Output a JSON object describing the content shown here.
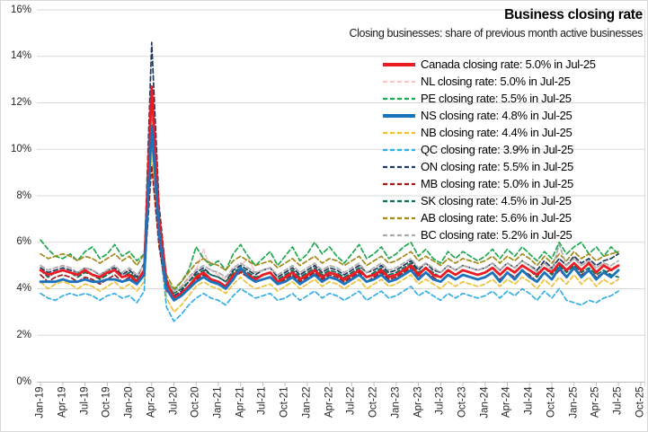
{
  "title": "Business closing rate",
  "subtitle": "Closing businesses: share of previous month active businesses",
  "y_axis": {
    "min": 0,
    "max": 16,
    "step": 2,
    "tick_labels": [
      "0%",
      "2%",
      "4%",
      "6%",
      "8%",
      "10%",
      "12%",
      "14%",
      "16%"
    ]
  },
  "x_axis": {
    "tick_labels": [
      "Jan-19",
      "Apr-19",
      "Jul-19",
      "Oct-19",
      "Jan-20",
      "Apr-20",
      "Jul-20",
      "Oct-20",
      "Jan-21",
      "Apr-21",
      "Jul-21",
      "Oct-21",
      "Jan-22",
      "Apr-22",
      "Jul-22",
      "Oct-22",
      "Jan-23",
      "Apr-23",
      "Jul-23",
      "Oct-23",
      "Jan-24",
      "Apr-24",
      "Jul-24",
      "Oct-24",
      "Jan-25",
      "Apr-25",
      "Jul-25",
      "Oct-25"
    ],
    "months_between_ticks": 3,
    "total_month_slots": 82
  },
  "chart_data": {
    "type": "line",
    "frequency": "monthly",
    "x_start": "Jan-19",
    "x_end": "Jul-25",
    "grid": "horizontal",
    "legend_position": "top-right",
    "ylim": [
      0,
      16
    ],
    "series": [
      {
        "name": "Canada",
        "legend_label": "Canada closing rate: 5.0% in Jul-25",
        "last_value": 5.0,
        "color": "#ec1c24",
        "dash": false,
        "thick": true,
        "values": [
          4.8,
          4.6,
          4.7,
          4.8,
          4.7,
          4.6,
          4.8,
          4.6,
          4.5,
          4.7,
          4.8,
          4.5,
          4.6,
          4.3,
          4.8,
          12.7,
          7.0,
          4.3,
          3.6,
          3.8,
          4.1,
          4.5,
          4.7,
          4.4,
          4.3,
          4.1,
          4.6,
          4.8,
          4.6,
          4.4,
          4.6,
          4.7,
          4.3,
          4.5,
          4.7,
          4.4,
          4.6,
          4.8,
          4.5,
          4.7,
          4.6,
          4.4,
          4.6,
          4.8,
          4.5,
          4.6,
          4.8,
          4.5,
          4.6,
          4.8,
          5.0,
          4.6,
          4.9,
          4.6,
          4.5,
          4.8,
          4.6,
          4.8,
          4.7,
          4.6,
          4.7,
          4.9,
          4.6,
          4.9,
          4.7,
          5.0,
          4.8,
          4.6,
          4.9,
          4.7,
          5.1,
          4.8,
          5.1,
          4.8,
          5.1,
          4.7,
          5.0,
          4.8,
          5.0
        ]
      },
      {
        "name": "NL",
        "legend_label": "NL closing rate: 5.0% in Jul-25",
        "last_value": 5.0,
        "color": "#f3c6c8",
        "dash": true,
        "thick": false,
        "values": [
          5.0,
          4.8,
          4.9,
          5.0,
          4.9,
          4.7,
          4.9,
          4.8,
          4.6,
          4.8,
          5.0,
          4.7,
          4.8,
          4.5,
          5.0,
          10.2,
          6.6,
          4.2,
          3.8,
          4.0,
          4.4,
          4.8,
          5.7,
          4.8,
          4.6,
          4.4,
          4.8,
          5.0,
          5.3,
          4.7,
          4.8,
          4.9,
          4.5,
          4.7,
          4.9,
          4.6,
          4.8,
          5.0,
          4.7,
          4.9,
          4.8,
          4.6,
          4.8,
          5.0,
          4.7,
          4.8,
          5.0,
          4.7,
          4.8,
          5.0,
          5.2,
          4.8,
          5.1,
          4.8,
          4.7,
          5.0,
          4.8,
          5.0,
          4.9,
          4.8,
          4.9,
          5.1,
          4.8,
          5.1,
          4.9,
          5.2,
          5.0,
          4.8,
          5.1,
          4.9,
          5.3,
          5.0,
          5.3,
          5.0,
          5.2,
          4.9,
          5.1,
          4.9,
          5.0
        ]
      },
      {
        "name": "PE",
        "legend_label": "PE closing rate: 5.5% in Jul-25",
        "last_value": 5.5,
        "color": "#1fa84f",
        "dash": true,
        "thick": false,
        "values": [
          6.1,
          5.7,
          5.4,
          5.3,
          5.5,
          5.2,
          5.6,
          5.8,
          5.3,
          5.5,
          5.9,
          5.4,
          5.6,
          5.2,
          5.5,
          10.4,
          6.8,
          4.4,
          3.9,
          4.3,
          4.8,
          5.8,
          5.3,
          5.0,
          5.2,
          4.8,
          5.5,
          5.9,
          5.4,
          5.0,
          5.3,
          5.6,
          5.0,
          5.4,
          5.8,
          5.2,
          5.5,
          6.0,
          5.5,
          5.8,
          5.4,
          5.1,
          5.5,
          5.9,
          5.3,
          5.5,
          5.8,
          5.3,
          5.5,
          5.8,
          6.0,
          5.4,
          5.7,
          5.3,
          5.1,
          5.6,
          5.3,
          5.6,
          5.4,
          5.2,
          5.4,
          5.7,
          5.3,
          5.7,
          5.4,
          5.8,
          5.5,
          5.2,
          5.6,
          5.3,
          6.0,
          5.5,
          5.8,
          6.0,
          5.5,
          5.8,
          5.4,
          5.8,
          5.5
        ]
      },
      {
        "name": "NS",
        "legend_label": "NS closing rate: 4.8% in Jul-25",
        "last_value": 4.8,
        "color": "#1b74bb",
        "dash": false,
        "thick": true,
        "values": [
          4.3,
          4.3,
          4.3,
          4.4,
          4.3,
          4.3,
          4.4,
          4.3,
          4.3,
          4.4,
          4.4,
          4.3,
          4.4,
          4.2,
          4.6,
          11.0,
          6.4,
          4.0,
          3.5,
          3.7,
          4.0,
          4.3,
          4.5,
          4.3,
          4.2,
          4.0,
          4.4,
          4.9,
          4.5,
          4.3,
          4.4,
          4.5,
          4.2,
          4.3,
          4.5,
          4.2,
          4.4,
          4.6,
          4.3,
          4.5,
          4.4,
          4.2,
          4.4,
          4.6,
          4.3,
          4.4,
          4.6,
          4.3,
          4.4,
          4.6,
          4.8,
          4.4,
          4.7,
          4.4,
          4.3,
          4.6,
          4.4,
          4.6,
          4.5,
          4.4,
          4.5,
          4.7,
          4.3,
          4.7,
          4.4,
          4.8,
          4.5,
          4.3,
          4.7,
          4.4,
          4.9,
          4.5,
          4.9,
          4.5,
          4.8,
          4.4,
          4.7,
          4.5,
          4.8
        ]
      },
      {
        "name": "NB",
        "legend_label": "NB closing rate: 4.4% in Jul-25",
        "last_value": 4.4,
        "color": "#efc13b",
        "dash": true,
        "thick": false,
        "values": [
          4.3,
          4.0,
          4.2,
          4.3,
          4.2,
          4.0,
          4.2,
          4.1,
          3.9,
          4.1,
          4.3,
          4.0,
          4.2,
          3.9,
          4.3,
          9.8,
          6.0,
          3.6,
          3.0,
          3.3,
          3.7,
          4.1,
          4.3,
          4.1,
          4.0,
          3.8,
          4.2,
          4.5,
          4.2,
          4.0,
          4.1,
          4.2,
          3.9,
          4.1,
          4.3,
          4.0,
          4.2,
          4.4,
          4.1,
          4.3,
          4.2,
          4.0,
          4.2,
          4.4,
          4.0,
          4.2,
          4.4,
          4.1,
          4.2,
          4.4,
          4.6,
          4.2,
          4.4,
          4.2,
          4.0,
          4.3,
          4.1,
          4.3,
          4.2,
          4.1,
          4.2,
          4.4,
          4.1,
          4.4,
          4.2,
          4.5,
          4.3,
          4.0,
          4.4,
          4.1,
          4.5,
          4.2,
          4.6,
          4.2,
          4.5,
          4.1,
          4.4,
          4.2,
          4.4
        ]
      },
      {
        "name": "QC",
        "legend_label": "QC closing rate: 3.9% in Jul-25",
        "last_value": 3.9,
        "color": "#35aee3",
        "dash": true,
        "thick": false,
        "values": [
          3.8,
          3.6,
          3.5,
          3.7,
          3.8,
          3.7,
          3.8,
          3.7,
          3.5,
          3.7,
          3.8,
          3.6,
          3.7,
          3.4,
          3.9,
          11.3,
          6.2,
          3.2,
          2.6,
          2.9,
          3.3,
          3.6,
          3.8,
          3.6,
          3.5,
          3.3,
          3.7,
          4.0,
          3.8,
          3.6,
          3.7,
          3.8,
          3.5,
          3.6,
          3.8,
          3.5,
          3.7,
          3.9,
          3.6,
          3.8,
          3.7,
          3.5,
          3.7,
          3.9,
          3.5,
          3.7,
          3.9,
          3.6,
          3.7,
          3.9,
          4.1,
          3.7,
          3.9,
          3.7,
          3.5,
          3.8,
          3.6,
          3.8,
          3.7,
          3.6,
          3.7,
          3.9,
          3.6,
          3.9,
          3.7,
          4.0,
          3.8,
          3.5,
          3.9,
          3.6,
          4.0,
          3.5,
          3.4,
          3.3,
          3.5,
          3.4,
          3.6,
          3.7,
          3.9
        ]
      },
      {
        "name": "ON",
        "legend_label": "ON closing rate: 5.5% in Jul-25",
        "last_value": 5.5,
        "color": "#1f3a5f",
        "dash": true,
        "thick": false,
        "values": [
          4.9,
          4.7,
          4.8,
          4.9,
          4.8,
          4.7,
          4.9,
          4.8,
          4.6,
          4.8,
          4.9,
          4.6,
          4.8,
          4.5,
          5.1,
          14.6,
          7.6,
          4.4,
          3.7,
          3.9,
          4.3,
          4.7,
          4.9,
          4.6,
          4.5,
          4.3,
          4.8,
          5.0,
          4.8,
          4.6,
          4.8,
          4.9,
          4.5,
          4.7,
          4.9,
          4.6,
          4.8,
          5.0,
          4.7,
          4.9,
          4.8,
          4.6,
          4.8,
          5.0,
          4.7,
          4.8,
          5.0,
          4.7,
          4.8,
          5.0,
          5.2,
          4.8,
          5.1,
          4.8,
          4.7,
          5.0,
          4.8,
          5.0,
          4.9,
          4.8,
          4.9,
          5.1,
          4.8,
          5.1,
          4.9,
          5.2,
          5.0,
          4.8,
          5.2,
          4.9,
          5.3,
          5.0,
          5.4,
          5.1,
          5.3,
          5.0,
          5.2,
          5.3,
          5.5
        ]
      },
      {
        "name": "MB",
        "legend_label": "MB closing rate: 5.0% in Jul-25",
        "last_value": 5.0,
        "color": "#9e1b1e",
        "dash": true,
        "thick": false,
        "values": [
          4.6,
          4.3,
          4.5,
          4.6,
          4.5,
          4.3,
          4.5,
          4.4,
          4.2,
          4.4,
          4.6,
          4.3,
          4.5,
          4.2,
          4.6,
          9.3,
          5.8,
          3.9,
          3.6,
          3.8,
          4.1,
          4.4,
          4.6,
          4.4,
          4.3,
          4.1,
          4.5,
          4.7,
          4.5,
          4.3,
          4.4,
          4.5,
          4.2,
          4.4,
          4.6,
          4.3,
          4.5,
          4.7,
          4.4,
          4.6,
          4.5,
          4.3,
          4.5,
          4.7,
          4.3,
          4.5,
          4.7,
          4.4,
          4.5,
          4.7,
          4.9,
          4.5,
          4.7,
          4.5,
          4.3,
          4.6,
          4.4,
          4.6,
          4.5,
          4.4,
          4.5,
          4.7,
          4.4,
          4.7,
          4.5,
          4.8,
          4.6,
          4.3,
          4.7,
          4.4,
          4.8,
          4.5,
          4.9,
          4.6,
          4.8,
          4.5,
          4.7,
          4.8,
          5.0
        ]
      },
      {
        "name": "SK",
        "legend_label": "SK closing rate: 4.5% in Jul-25",
        "last_value": 4.5,
        "color": "#0f6b55",
        "dash": true,
        "thick": false,
        "values": [
          4.8,
          4.5,
          4.7,
          4.8,
          4.7,
          4.5,
          4.7,
          4.6,
          4.4,
          4.6,
          4.8,
          4.5,
          4.7,
          4.4,
          4.8,
          11.4,
          6.6,
          4.1,
          3.8,
          4.0,
          4.3,
          4.6,
          4.8,
          4.6,
          4.5,
          4.3,
          4.7,
          4.9,
          4.7,
          4.5,
          4.6,
          4.7,
          4.4,
          4.6,
          4.8,
          4.5,
          4.7,
          4.9,
          4.6,
          4.8,
          4.7,
          4.5,
          4.7,
          4.9,
          4.5,
          4.7,
          4.9,
          4.6,
          4.7,
          4.9,
          5.1,
          4.7,
          4.9,
          4.7,
          4.5,
          4.8,
          4.6,
          4.8,
          4.7,
          4.6,
          4.7,
          4.9,
          4.6,
          4.9,
          4.7,
          5.0,
          4.8,
          4.5,
          4.9,
          4.6,
          5.0,
          4.7,
          5.0,
          4.7,
          4.9,
          4.6,
          4.8,
          4.6,
          4.5
        ]
      },
      {
        "name": "AB",
        "legend_label": "AB closing rate: 5.6% in Jul-25",
        "last_value": 5.6,
        "color": "#a3881a",
        "dash": true,
        "thick": false,
        "values": [
          5.5,
          5.3,
          5.4,
          5.5,
          5.4,
          5.2,
          5.4,
          5.3,
          5.1,
          5.3,
          5.5,
          5.2,
          5.4,
          5.0,
          5.5,
          10.8,
          7.0,
          4.6,
          4.0,
          4.3,
          4.7,
          5.1,
          5.3,
          5.1,
          5.0,
          4.8,
          5.2,
          5.4,
          5.2,
          5.0,
          5.1,
          5.2,
          4.9,
          5.1,
          5.3,
          5.0,
          5.2,
          5.4,
          5.1,
          5.3,
          5.2,
          5.0,
          5.2,
          5.4,
          5.0,
          5.2,
          5.4,
          5.1,
          5.2,
          5.4,
          5.6,
          5.2,
          5.4,
          5.2,
          5.0,
          5.3,
          5.1,
          5.3,
          5.2,
          5.1,
          5.2,
          5.4,
          5.1,
          5.4,
          5.2,
          5.5,
          5.3,
          5.0,
          5.4,
          5.1,
          5.5,
          5.2,
          5.6,
          5.3,
          5.5,
          5.2,
          5.4,
          5.5,
          5.6
        ]
      },
      {
        "name": "BC",
        "legend_label": "BC closing rate: 5.2% in Jul-25",
        "last_value": 5.2,
        "color": "#ababab",
        "dash": true,
        "thick": false,
        "values": [
          5.0,
          4.8,
          4.9,
          5.0,
          4.9,
          4.7,
          4.9,
          4.8,
          4.6,
          4.8,
          5.0,
          4.7,
          4.9,
          4.6,
          5.0,
          11.6,
          6.8,
          4.3,
          3.9,
          4.1,
          4.5,
          4.8,
          5.0,
          4.8,
          4.7,
          4.5,
          4.9,
          5.1,
          4.9,
          4.7,
          4.8,
          4.9,
          4.6,
          4.8,
          5.0,
          4.7,
          4.9,
          5.1,
          4.8,
          5.0,
          4.9,
          4.7,
          4.9,
          5.1,
          4.7,
          4.9,
          5.1,
          4.8,
          4.9,
          5.1,
          5.3,
          4.9,
          5.1,
          4.9,
          4.7,
          5.0,
          4.8,
          5.0,
          4.9,
          4.8,
          4.9,
          5.1,
          4.8,
          5.1,
          4.9,
          5.2,
          5.0,
          4.7,
          5.1,
          4.8,
          5.9,
          5.0,
          5.3,
          5.0,
          5.2,
          4.9,
          5.1,
          5.0,
          5.2
        ]
      }
    ]
  }
}
